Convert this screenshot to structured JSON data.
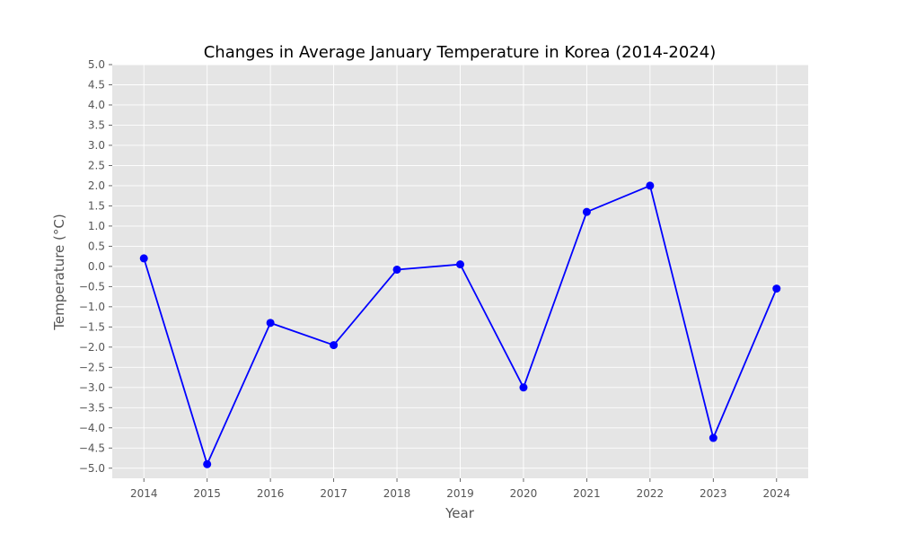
{
  "chart_data": {
    "type": "line",
    "title": "Changes in Average January Temperature in Korea (2014-2024)",
    "xlabel": "Year",
    "ylabel": "Temperature (°C)",
    "x": [
      2014,
      2015,
      2016,
      2017,
      2018,
      2019,
      2020,
      2021,
      2022,
      2023,
      2024
    ],
    "series": [
      {
        "values": [
          0.2,
          -4.9,
          -1.4,
          -1.95,
          -0.08,
          0.05,
          -3.0,
          1.35,
          2.0,
          -4.25,
          -0.55
        ],
        "color": "#0000ff",
        "marker": "circle"
      }
    ],
    "xticks": [
      "2014",
      "2015",
      "2016",
      "2017",
      "2018",
      "2019",
      "2020",
      "2021",
      "2022",
      "2023",
      "2024"
    ],
    "yticks": [
      "−5.0",
      "−4.5",
      "−4.0",
      "−3.5",
      "−3.0",
      "−2.5",
      "−2.0",
      "−1.5",
      "−1.0",
      "−0.5",
      "0.0",
      "0.5",
      "1.0",
      "1.5",
      "2.0",
      "2.5",
      "3.0",
      "3.5",
      "4.0",
      "4.5",
      "5.0"
    ],
    "ytick_values": [
      -5.0,
      -4.5,
      -4.0,
      -3.5,
      -3.0,
      -2.5,
      -2.0,
      -1.5,
      -1.0,
      -0.5,
      0.0,
      0.5,
      1.0,
      1.5,
      2.0,
      2.5,
      3.0,
      3.5,
      4.0,
      4.5,
      5.0
    ],
    "xlim": [
      2013.5,
      2024.5
    ],
    "ylim": [
      -5.25,
      5.0
    ],
    "grid": true,
    "background_color": "#e5e5e5",
    "grid_color": "#ffffff"
  }
}
